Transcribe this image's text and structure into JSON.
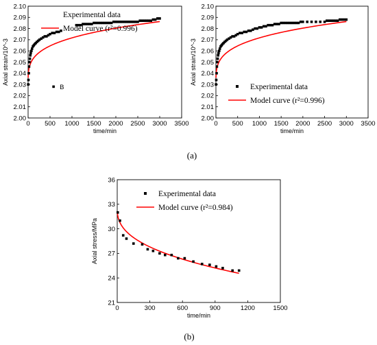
{
  "panel_labels": {
    "a": "(a)",
    "b": "(b)"
  },
  "chart_data": [
    {
      "type": "scatter",
      "xlabel": "time/min",
      "ylabel": "Axial strain/10^-3",
      "xlim": [
        0,
        3500
      ],
      "ylim": [
        2.0,
        2.1
      ],
      "xticks": [
        0,
        500,
        1000,
        1500,
        2000,
        2500,
        3000,
        3500
      ],
      "yticks": [
        2.0,
        2.01,
        2.02,
        2.03,
        2.04,
        2.05,
        2.06,
        2.07,
        2.08,
        2.09,
        2.1
      ],
      "tick_decimals": 2,
      "annotation": "B",
      "legend": [
        {
          "name": "Experimental data",
          "kind": "marker"
        },
        {
          "name": "Model curve (r²=0.996)",
          "kind": "line",
          "color": "#ff0000"
        }
      ],
      "series": [
        {
          "name": "Experimental data",
          "points": [
            [
              2,
              2.03
            ],
            [
              8,
              2.034
            ],
            [
              15,
              2.04
            ],
            [
              22,
              2.046
            ],
            [
              30,
              2.05
            ],
            [
              40,
              2.053
            ],
            [
              50,
              2.056
            ],
            [
              60,
              2.058
            ],
            [
              75,
              2.06
            ],
            [
              90,
              2.062
            ],
            [
              110,
              2.064
            ],
            [
              130,
              2.065
            ],
            [
              150,
              2.066
            ],
            [
              175,
              2.067
            ],
            [
              200,
              2.068
            ],
            [
              230,
              2.069
            ],
            [
              260,
              2.07
            ],
            [
              300,
              2.071
            ],
            [
              340,
              2.072
            ],
            [
              380,
              2.073
            ],
            [
              420,
              2.073
            ],
            [
              460,
              2.074
            ],
            [
              500,
              2.075
            ],
            [
              550,
              2.076
            ],
            [
              600,
              2.076
            ],
            [
              650,
              2.077
            ],
            [
              700,
              2.077
            ],
            [
              750,
              2.078
            ],
            [
              1100,
              2.083
            ],
            [
              1150,
              2.083
            ],
            [
              1200,
              2.083
            ],
            [
              1250,
              2.084
            ],
            [
              1300,
              2.084
            ],
            [
              1350,
              2.084
            ],
            [
              1400,
              2.084
            ],
            [
              1450,
              2.084
            ],
            [
              1500,
              2.085
            ],
            [
              1550,
              2.085
            ],
            [
              1600,
              2.085
            ],
            [
              1650,
              2.085
            ],
            [
              1700,
              2.085
            ],
            [
              1750,
              2.085
            ],
            [
              1800,
              2.085
            ],
            [
              1850,
              2.085
            ],
            [
              1900,
              2.085
            ],
            [
              1950,
              2.086
            ],
            [
              2000,
              2.086
            ],
            [
              2050,
              2.086
            ],
            [
              2100,
              2.086
            ],
            [
              2150,
              2.086
            ],
            [
              2200,
              2.086
            ],
            [
              2250,
              2.086
            ],
            [
              2300,
              2.086
            ],
            [
              2350,
              2.086
            ],
            [
              2400,
              2.086
            ],
            [
              2450,
              2.086
            ],
            [
              2500,
              2.086
            ],
            [
              2550,
              2.087
            ],
            [
              2600,
              2.087
            ],
            [
              2650,
              2.087
            ],
            [
              2700,
              2.087
            ],
            [
              2750,
              2.087
            ],
            [
              2800,
              2.087
            ],
            [
              2850,
              2.088
            ],
            [
              2900,
              2.088
            ],
            [
              2950,
              2.089
            ],
            [
              3000,
              2.089
            ]
          ],
          "extra_points": [
            [
              580,
              2.028
            ]
          ]
        },
        {
          "name": "Model curve (r²=0.996)",
          "color": "#ff0000",
          "model": {
            "form": "a+b*t^c",
            "a": 2.0295,
            "b": 0.00653,
            "c": 0.27
          },
          "x_range": [
            1,
            3000
          ]
        }
      ]
    },
    {
      "type": "scatter",
      "xlabel": "time/min",
      "ylabel": "Axial strain/10^-3",
      "xlim": [
        0,
        3500
      ],
      "ylim": [
        2.0,
        2.1
      ],
      "xticks": [
        0,
        500,
        1000,
        1500,
        2000,
        2500,
        3000,
        3500
      ],
      "yticks": [
        2.0,
        2.01,
        2.02,
        2.03,
        2.04,
        2.05,
        2.06,
        2.07,
        2.08,
        2.09,
        2.1
      ],
      "tick_decimals": 2,
      "legend": [
        {
          "name": "Experimental data",
          "kind": "marker"
        },
        {
          "name": "Model curve (r²=0.996)",
          "kind": "line",
          "color": "#ff0000"
        }
      ],
      "series": [
        {
          "name": "Experimental data",
          "points": [
            [
              2,
              2.03
            ],
            [
              8,
              2.034
            ],
            [
              15,
              2.04
            ],
            [
              22,
              2.046
            ],
            [
              30,
              2.05
            ],
            [
              40,
              2.053
            ],
            [
              50,
              2.056
            ],
            [
              60,
              2.058
            ],
            [
              75,
              2.06
            ],
            [
              90,
              2.062
            ],
            [
              110,
              2.064
            ],
            [
              130,
              2.065
            ],
            [
              150,
              2.066
            ],
            [
              175,
              2.067
            ],
            [
              200,
              2.068
            ],
            [
              230,
              2.069
            ],
            [
              260,
              2.07
            ],
            [
              300,
              2.071
            ],
            [
              340,
              2.072
            ],
            [
              380,
              2.073
            ],
            [
              420,
              2.073
            ],
            [
              460,
              2.074
            ],
            [
              500,
              2.075
            ],
            [
              550,
              2.076
            ],
            [
              600,
              2.076
            ],
            [
              650,
              2.077
            ],
            [
              700,
              2.077
            ],
            [
              750,
              2.078
            ],
            [
              800,
              2.078
            ],
            [
              850,
              2.079
            ],
            [
              900,
              2.08
            ],
            [
              950,
              2.08
            ],
            [
              1000,
              2.081
            ],
            [
              1050,
              2.081
            ],
            [
              1100,
              2.082
            ],
            [
              1150,
              2.082
            ],
            [
              1200,
              2.083
            ],
            [
              1250,
              2.083
            ],
            [
              1300,
              2.083
            ],
            [
              1350,
              2.084
            ],
            [
              1400,
              2.084
            ],
            [
              1450,
              2.084
            ],
            [
              1500,
              2.085
            ],
            [
              1550,
              2.085
            ],
            [
              1600,
              2.085
            ],
            [
              1650,
              2.085
            ],
            [
              1700,
              2.085
            ],
            [
              1750,
              2.085
            ],
            [
              1800,
              2.085
            ],
            [
              1850,
              2.085
            ],
            [
              1900,
              2.085
            ],
            [
              1950,
              2.086
            ],
            [
              2000,
              2.086
            ],
            [
              2100,
              2.086
            ],
            [
              2200,
              2.086
            ],
            [
              2300,
              2.086
            ],
            [
              2400,
              2.086
            ],
            [
              2500,
              2.086
            ],
            [
              2550,
              2.087
            ],
            [
              2600,
              2.087
            ],
            [
              2650,
              2.087
            ],
            [
              2700,
              2.087
            ],
            [
              2750,
              2.087
            ],
            [
              2800,
              2.087
            ],
            [
              2850,
              2.088
            ],
            [
              2900,
              2.088
            ],
            [
              2950,
              2.088
            ],
            [
              3000,
              2.088
            ]
          ]
        },
        {
          "name": "Model curve (r²=0.996)",
          "color": "#ff0000",
          "model": {
            "form": "a+b*t^c",
            "a": 2.0295,
            "b": 0.00653,
            "c": 0.27
          },
          "x_range": [
            1,
            3000
          ]
        }
      ]
    },
    {
      "type": "scatter",
      "xlabel": "time/min",
      "ylabel": "Axial stress/MPa",
      "xlim": [
        0,
        1500
      ],
      "ylim": [
        21,
        36
      ],
      "xticks": [
        0,
        300,
        600,
        900,
        1200,
        1500
      ],
      "yticks": [
        21,
        24,
        27,
        30,
        33,
        36
      ],
      "tick_decimals": 0,
      "legend": [
        {
          "name": "Experimental data",
          "kind": "marker"
        },
        {
          "name": "Model curve (r²=0.984)",
          "kind": "line",
          "color": "#ff0000"
        }
      ],
      "series": [
        {
          "name": "Experimental data",
          "points": [
            [
              5,
              32.0
            ],
            [
              25,
              31.0
            ],
            [
              55,
              29.2
            ],
            [
              85,
              28.8
            ],
            [
              150,
              28.2
            ],
            [
              230,
              28.1
            ],
            [
              280,
              27.5
            ],
            [
              330,
              27.3
            ],
            [
              390,
              27.0
            ],
            [
              440,
              26.8
            ],
            [
              500,
              26.8
            ],
            [
              560,
              26.4
            ],
            [
              620,
              26.4
            ],
            [
              700,
              26.0
            ],
            [
              780,
              25.7
            ],
            [
              850,
              25.6
            ],
            [
              910,
              25.4
            ],
            [
              970,
              25.2
            ],
            [
              1060,
              24.9
            ],
            [
              1120,
              24.9
            ]
          ]
        },
        {
          "name": "Model curve (r²=0.984)",
          "color": "#ff0000",
          "model": {
            "form": "a-b*t^c",
            "a": 32.6,
            "b": 0.52,
            "c": 0.39
          },
          "x_range": [
            1,
            1120
          ]
        }
      ]
    }
  ]
}
